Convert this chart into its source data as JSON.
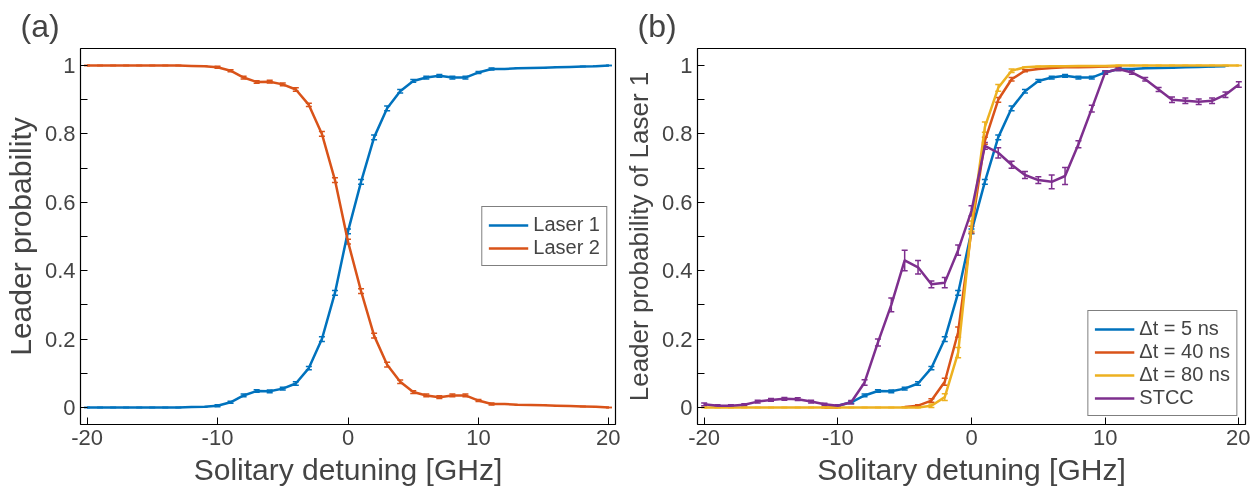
{
  "chart_data": [
    {
      "type": "line",
      "annotations": [
        "(a)"
      ],
      "xlabel": "Solitary detuning [GHz]",
      "ylabel": "Leader probability",
      "xlim": [
        -20.5,
        20.5
      ],
      "ylim": [
        -0.05,
        1.05
      ],
      "xticks": [
        -20,
        -10,
        0,
        10,
        20
      ],
      "yticks": [
        0,
        0.2,
        0.4,
        0.6,
        0.8,
        1
      ],
      "grid": false,
      "legend": "right",
      "x": [
        -20,
        -19,
        -18,
        -17,
        -16,
        -15,
        -14,
        -13,
        -12,
        -11,
        -10,
        -9,
        -8,
        -7,
        -6,
        -5,
        -4,
        -3,
        -2,
        -1,
        0,
        1,
        2,
        3,
        4,
        5,
        6,
        7,
        8,
        9,
        10,
        11,
        12,
        13,
        14,
        15,
        16,
        17,
        18,
        19,
        20
      ],
      "series": [
        {
          "name": "Laser 1",
          "color": "#0072bd",
          "values": [
            0,
            0,
            0,
            0,
            0,
            0,
            0,
            0,
            0.001,
            0.002,
            0.005,
            0.015,
            0.035,
            0.048,
            0.047,
            0.055,
            0.07,
            0.115,
            0.2,
            0.335,
            0.515,
            0.66,
            0.79,
            0.875,
            0.925,
            0.955,
            0.965,
            0.97,
            0.965,
            0.965,
            0.98,
            0.99,
            0.99,
            0.992,
            0.993,
            0.994,
            0.995,
            0.996,
            0.997,
            0.998,
            1
          ],
          "errors": [
            0,
            0,
            0,
            0,
            0,
            0,
            0,
            0,
            0,
            0,
            0.003,
            0.003,
            0.004,
            0.004,
            0.004,
            0.004,
            0.005,
            0.005,
            0.007,
            0.007,
            0.007,
            0.007,
            0.007,
            0.007,
            0.005,
            0.004,
            0.004,
            0.004,
            0.004,
            0.004,
            0.003,
            0.003,
            0,
            0,
            0,
            0,
            0,
            0,
            0,
            0,
            0
          ]
        },
        {
          "name": "Laser 2",
          "color": "#d95319",
          "values": [
            1,
            1,
            1,
            1,
            1,
            1,
            1,
            1,
            0.999,
            0.998,
            0.995,
            0.985,
            0.965,
            0.952,
            0.953,
            0.945,
            0.93,
            0.885,
            0.8,
            0.665,
            0.485,
            0.34,
            0.21,
            0.125,
            0.075,
            0.045,
            0.035,
            0.03,
            0.035,
            0.035,
            0.02,
            0.01,
            0.01,
            0.008,
            0.007,
            0.006,
            0.005,
            0.004,
            0.003,
            0.002,
            0
          ],
          "errors": [
            0,
            0,
            0,
            0,
            0,
            0,
            0,
            0,
            0,
            0,
            0.003,
            0.003,
            0.004,
            0.004,
            0.004,
            0.004,
            0.005,
            0.005,
            0.007,
            0.007,
            0.007,
            0.007,
            0.007,
            0.007,
            0.005,
            0.004,
            0.004,
            0.004,
            0.004,
            0.004,
            0.003,
            0.003,
            0,
            0,
            0,
            0,
            0,
            0,
            0,
            0,
            0
          ]
        }
      ]
    },
    {
      "type": "line",
      "annotations": [
        "(b)"
      ],
      "xlabel": "Solitary detuning [GHz]",
      "ylabel": "Leader probability of Laser 1",
      "xlim": [
        -20.5,
        20.5
      ],
      "ylim": [
        -0.05,
        1.05
      ],
      "xticks": [
        -20,
        -10,
        0,
        10,
        20
      ],
      "yticks": [
        0,
        0.2,
        0.4,
        0.6,
        0.8,
        1
      ],
      "grid": false,
      "legend": "bottom right",
      "x": [
        -20,
        -19,
        -18,
        -17,
        -16,
        -15,
        -14,
        -13,
        -12,
        -11,
        -10,
        -9,
        -8,
        -7,
        -6,
        -5,
        -4,
        -3,
        -2,
        -1,
        0,
        1,
        2,
        3,
        4,
        5,
        6,
        7,
        8,
        9,
        10,
        11,
        12,
        13,
        14,
        15,
        16,
        17,
        18,
        19,
        20
      ],
      "series": [
        {
          "name": "Δt = 5 ns",
          "color": "#0072bd",
          "values": [
            null,
            null,
            null,
            null,
            null,
            null,
            null,
            null,
            null,
            null,
            0.005,
            0.015,
            0.035,
            0.048,
            0.047,
            0.055,
            0.07,
            0.115,
            0.2,
            0.335,
            0.515,
            0.66,
            0.79,
            0.875,
            0.925,
            0.955,
            0.965,
            0.97,
            0.965,
            0.965,
            0.98,
            0.99,
            0.99,
            0.992,
            0.993,
            0.994,
            0.995,
            0.996,
            0.997,
            0.998,
            null
          ],
          "errors": [
            null,
            null,
            null,
            null,
            null,
            null,
            null,
            null,
            null,
            null,
            0.003,
            0.003,
            0.004,
            0.004,
            0.004,
            0.004,
            0.005,
            0.005,
            0.007,
            0.007,
            0.007,
            0.007,
            0.007,
            0.007,
            0.005,
            0.004,
            0.004,
            0.004,
            0.004,
            0.004,
            0.003,
            0.003,
            0,
            0,
            0,
            0,
            0,
            0,
            0,
            0,
            null
          ]
        },
        {
          "name": "Δt = 40 ns",
          "color": "#d95319",
          "values": [
            null,
            null,
            null,
            null,
            null,
            null,
            null,
            null,
            null,
            0,
            0,
            null,
            null,
            null,
            null,
            0.001,
            0.005,
            0.02,
            0.075,
            0.22,
            0.52,
            0.78,
            0.9,
            0.96,
            0.985,
            0.99,
            0.993,
            0.995,
            0.995,
            0.996,
            0.997,
            0.998,
            null,
            null,
            null,
            null,
            null,
            null,
            null,
            null,
            null
          ],
          "errors": [
            null,
            null,
            null,
            null,
            null,
            null,
            null,
            null,
            null,
            0,
            0,
            null,
            null,
            null,
            null,
            0,
            0.003,
            0.005,
            0.01,
            0.015,
            0.01,
            0.01,
            0.007,
            0.005,
            0.003,
            0,
            0,
            0,
            0,
            0,
            0,
            0,
            null,
            null,
            null,
            null,
            null,
            null,
            null,
            null,
            null
          ]
        },
        {
          "name": "Δt = 80 ns",
          "color": "#edb120",
          "values": [
            0,
            0,
            0,
            0,
            0,
            0,
            0,
            0,
            0,
            0,
            0,
            0,
            0,
            0,
            0,
            0,
            0,
            0.005,
            0.03,
            0.16,
            0.53,
            0.82,
            0.935,
            0.985,
            0.995,
            0.997,
            0.998,
            0.998,
            0.999,
            0.999,
            0.999,
            1,
            1,
            1,
            1,
            1,
            1,
            1,
            1,
            1,
            1
          ],
          "errors": [
            0,
            0,
            0,
            0,
            0,
            0,
            0,
            0,
            0,
            0,
            0,
            0,
            0,
            0,
            0,
            0,
            0,
            0.005,
            0.01,
            0.015,
            0.015,
            0.015,
            0.01,
            0.005,
            0,
            0,
            0,
            0,
            0,
            0,
            0,
            0,
            0,
            0,
            0,
            0,
            0,
            0,
            0,
            0,
            0
          ]
        },
        {
          "name": "STCC",
          "color": "#7e2f8e",
          "values": [
            0.009,
            0.005,
            0.005,
            0.008,
            0.017,
            0.022,
            0.025,
            0.024,
            0.017,
            0.009,
            0.005,
            0.015,
            0.073,
            0.19,
            0.3,
            0.43,
            0.41,
            0.36,
            0.365,
            0.46,
            0.575,
            0.765,
            0.745,
            0.71,
            0.68,
            0.665,
            0.66,
            0.677,
            0.77,
            0.874,
            0.98,
            0.99,
            0.98,
            0.96,
            0.93,
            0.9,
            0.897,
            0.894,
            0.897,
            0.915,
            0.945
          ],
          "errors": [
            0.004,
            0.003,
            0.003,
            0.003,
            0.004,
            0.004,
            0.004,
            0.004,
            0.004,
            0.003,
            0.003,
            0.005,
            0.008,
            0.01,
            0.02,
            0.03,
            0.02,
            0.01,
            0.015,
            0.015,
            0.015,
            0.01,
            0.015,
            0.01,
            0.01,
            0.01,
            0.02,
            0.025,
            0.01,
            0.01,
            0.005,
            0.005,
            0.005,
            0.005,
            0.006,
            0.008,
            0.008,
            0.008,
            0.008,
            0.008,
            0.008
          ]
        }
      ]
    }
  ]
}
